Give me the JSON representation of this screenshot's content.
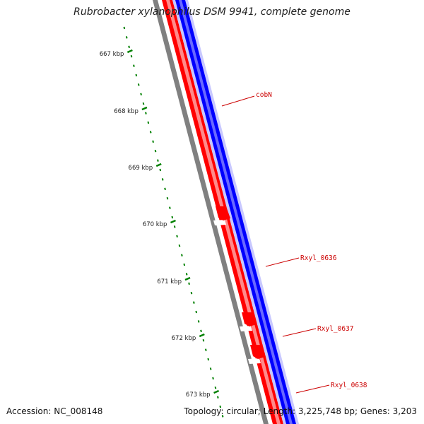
{
  "title": "Rubrobacter xylanophilus DSM 9941, complete genome",
  "accession_text": "Accession: NC_008148",
  "summary_text": "Topology: circular; Length: 3,225,748 bp; Genes: 3,203",
  "colors": {
    "forward_strand": "#ff0000",
    "reverse_strand": "#0000ff",
    "backbone": "#808080",
    "tick": "#008000",
    "label": "#cc0000"
  },
  "ticks": [
    {
      "kbp": 667,
      "label": "667 kbp"
    },
    {
      "kbp": 668,
      "label": "668 kbp"
    },
    {
      "kbp": 669,
      "label": "669 kbp"
    },
    {
      "kbp": 670,
      "label": "670 kbp"
    },
    {
      "kbp": 671,
      "label": "671 kbp"
    },
    {
      "kbp": 672,
      "label": "672 kbp"
    },
    {
      "kbp": 673,
      "label": "673 kbp"
    }
  ],
  "genes": [
    {
      "name": "cobN",
      "strand": "+"
    },
    {
      "name": "Rxyl_0636",
      "strand": "+"
    },
    {
      "name": "Rxyl_0637",
      "strand": "+"
    },
    {
      "name": "Rxyl_0638",
      "strand": "+"
    }
  ]
}
